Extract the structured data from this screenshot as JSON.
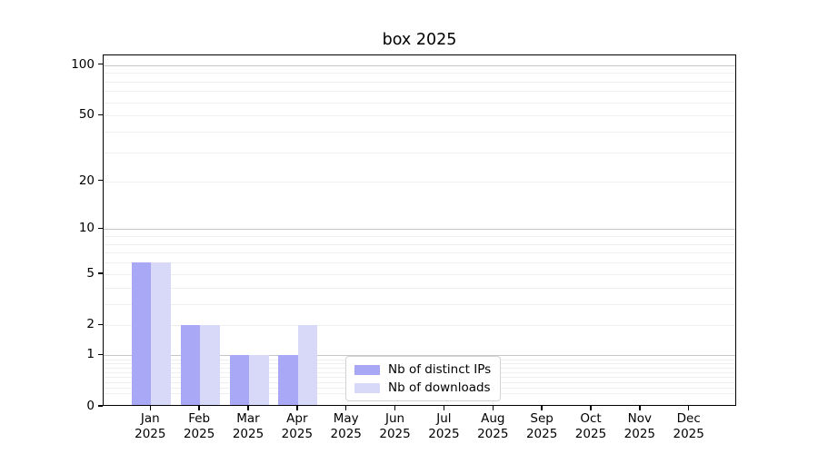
{
  "figure": {
    "background": "#ffffff",
    "text_color": "#000000",
    "spine_color": "#000000"
  },
  "chart_data": {
    "type": "bar",
    "title": "box 2025",
    "categories": [
      "Jan",
      "Feb",
      "Mar",
      "Apr",
      "May",
      "Jun",
      "Jul",
      "Aug",
      "Sep",
      "Oct",
      "Nov",
      "Dec"
    ],
    "x_tick_second_line": "2025",
    "series": [
      {
        "name": "Nb of distinct IPs",
        "color": "#a8a8f6",
        "values": [
          6,
          2,
          1,
          1,
          0,
          0,
          0,
          0,
          0,
          0,
          0,
          0
        ]
      },
      {
        "name": "Nb of downloads",
        "color": "#d8d8f9",
        "values": [
          6,
          2,
          1,
          2,
          0,
          0,
          0,
          0,
          0,
          0,
          0,
          0
        ]
      }
    ],
    "yscale": "log1p",
    "ylim": [
      0,
      114
    ],
    "y_ticks": [
      0,
      1,
      2,
      5,
      10,
      20,
      50,
      100
    ],
    "grid": {
      "major_values": [
        1,
        10,
        100
      ],
      "minor_values": [
        0.2,
        0.3,
        0.4,
        0.5,
        0.6,
        0.7,
        0.8,
        0.9,
        2,
        3,
        4,
        5,
        6,
        7,
        8,
        9,
        20,
        30,
        40,
        50,
        60,
        70,
        80,
        90
      ],
      "major_color": "#c6c6c6",
      "minor_color": "#efefef"
    },
    "legend": {
      "position": "lower center",
      "entries": [
        "Nb of distinct IPs",
        "Nb of downloads"
      ]
    }
  }
}
